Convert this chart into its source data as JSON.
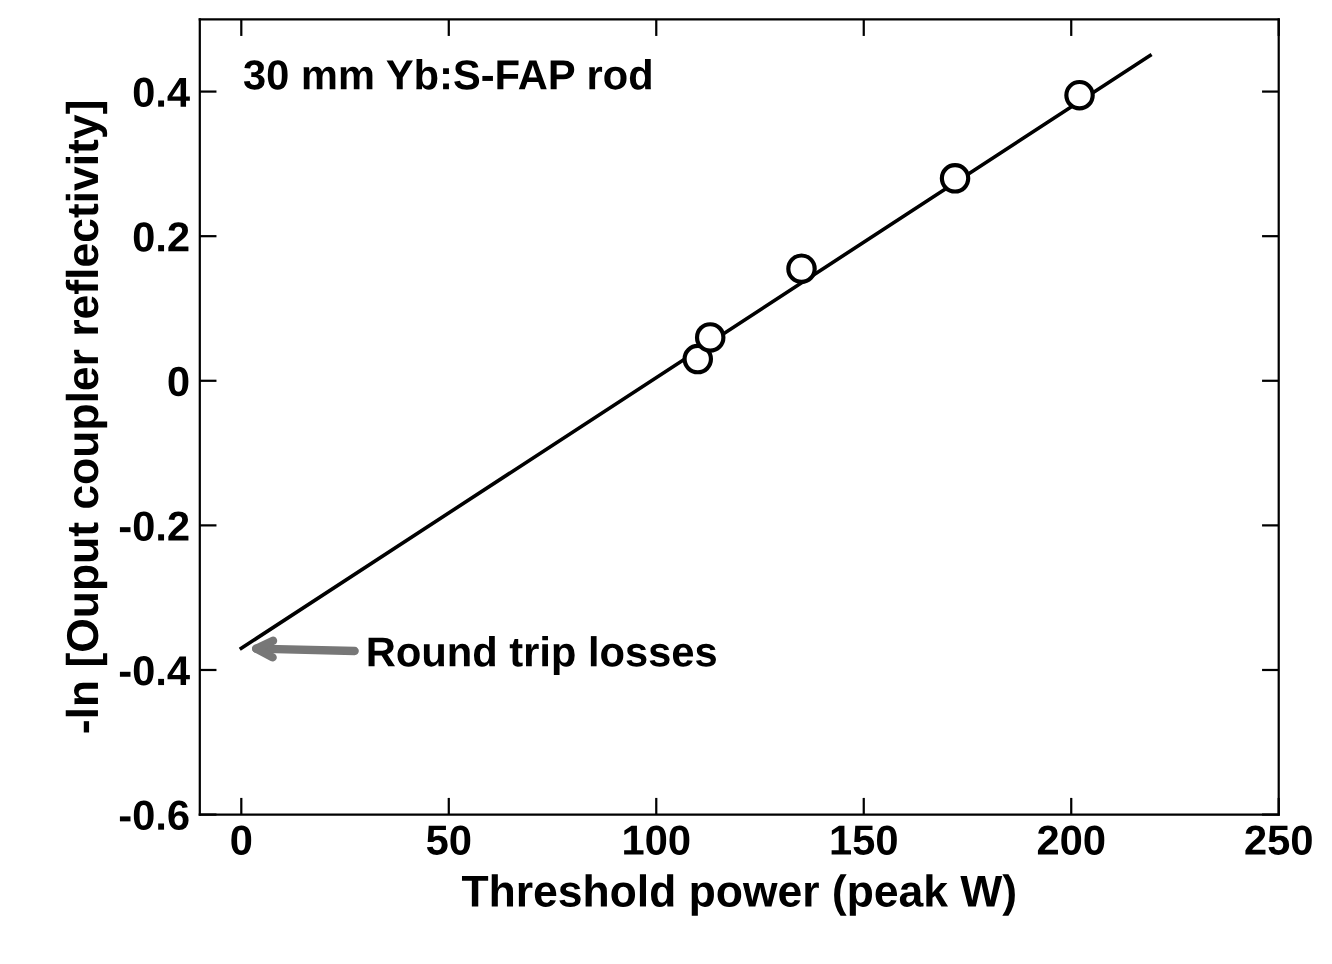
{
  "chart_data": {
    "type": "scatter",
    "xlabel": "Threshold power (peak W)",
    "ylabel": "-ln [Ouput coupler reflectivity]",
    "series": [
      {
        "color": "#000000",
        "marker": "circle",
        "x": [
          110,
          113,
          135,
          172,
          202
        ],
        "values": [
          0.03,
          0.06,
          0.155,
          0.28,
          0.395
        ]
      },
      {
        "type": "line",
        "color": "#000000",
        "marker": "none",
        "line_style": "solid",
        "x": [
          0,
          219
        ],
        "values": [
          -0.37,
          0.45
        ]
      }
    ],
    "annotations": [
      "30 mm Yb:S-FAP rod",
      {
        "text": "Round trip losses",
        "x": 0,
        "y": -0.37
      }
    ],
    "xlim": [
      -10,
      250
    ],
    "xticks": [
      0,
      50,
      100,
      150,
      200,
      250
    ],
    "ylim": [
      -0.6,
      0.5
    ],
    "yticks": [
      -0.6,
      -0.4,
      -0.2,
      0,
      0.2,
      0.4
    ],
    "grid": false,
    "legend": false
  }
}
